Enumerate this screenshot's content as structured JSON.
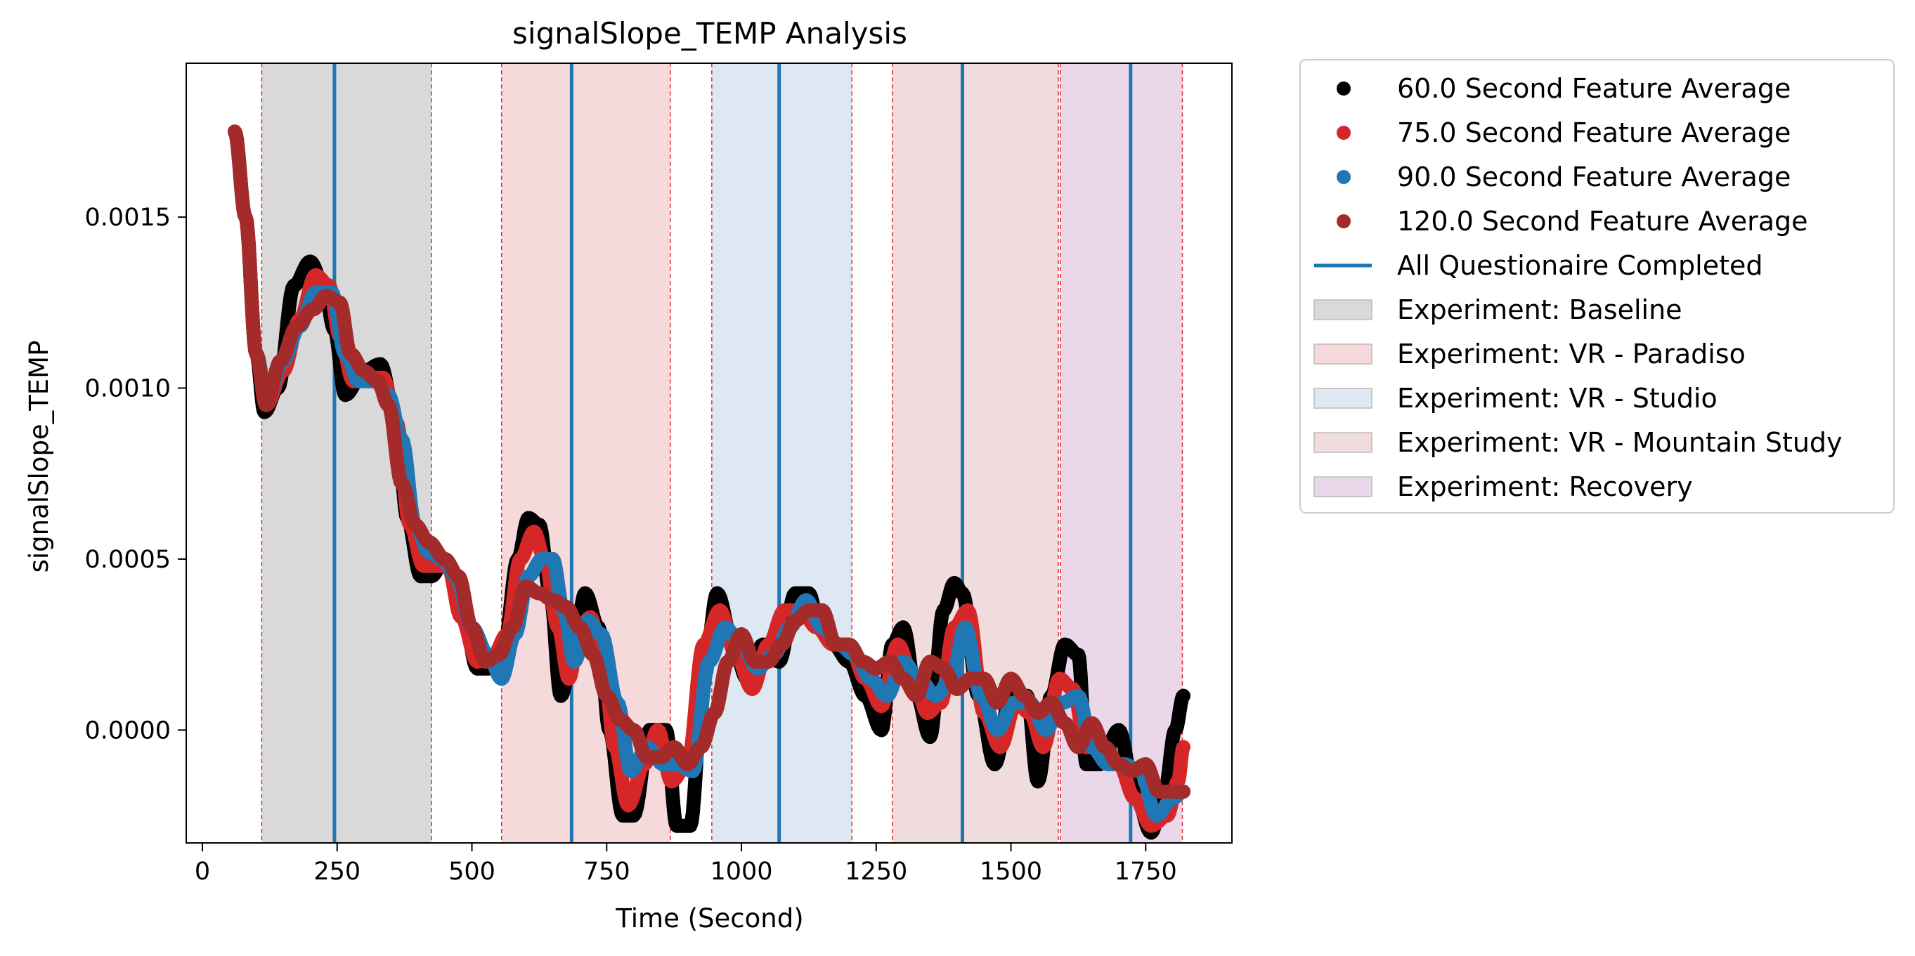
{
  "chart_data": {
    "type": "scatter",
    "title": "signalSlope_TEMP Analysis",
    "xlabel": "Time (Second)",
    "ylabel": "signalSlope_TEMP",
    "xlim": [
      -30,
      1910
    ],
    "ylim": [
      -0.00033,
      0.00195
    ],
    "xticks": [
      0,
      250,
      500,
      750,
      1000,
      1250,
      1500,
      1750
    ],
    "xtick_labels": [
      "0",
      "250",
      "500",
      "750",
      "1000",
      "1250",
      "1500",
      "1750"
    ],
    "yticks": [
      0.0,
      0.0005,
      0.001,
      0.0015
    ],
    "ytick_labels": [
      "0.0000",
      "0.0005",
      "0.0010",
      "0.0015"
    ],
    "grid": false,
    "legend_placement": "outside-right-top",
    "regions": [
      {
        "name": "Experiment: Baseline",
        "start": 110,
        "end": 425,
        "color": "#d9d9d9"
      },
      {
        "name": "Experiment: VR - Paradiso",
        "start": 555,
        "end": 868,
        "color": "#f6d9da"
      },
      {
        "name": "Experiment: VR - Studio",
        "start": 945,
        "end": 1205,
        "color": "#dde8f2"
      },
      {
        "name": "Experiment: VR - Mountain Study",
        "start": 1280,
        "end": 1588,
        "color": "#f0dcdc"
      },
      {
        "name": "Experiment: Recovery",
        "start": 1592,
        "end": 1818,
        "color": "#ead8ea"
      }
    ],
    "region_boundaries": [
      110,
      425,
      555,
      868,
      945,
      1205,
      1280,
      1588,
      1592,
      1818
    ],
    "vertical_lines": {
      "name": "All Questionaire Completed",
      "x": [
        245,
        685,
        1070,
        1410,
        1722
      ],
      "color": "#1f77b4"
    },
    "series": [
      {
        "name": "60.0 Second Feature Average",
        "color": "#000000",
        "x": [
          60,
          80,
          100,
          115,
          140,
          170,
          200,
          225,
          245,
          265,
          300,
          330,
          360,
          380,
          405,
          425,
          450,
          480,
          510,
          530,
          560,
          585,
          605,
          625,
          645,
          665,
          690,
          710,
          735,
          755,
          780,
          800,
          830,
          860,
          880,
          905,
          930,
          955,
          985,
          1010,
          1040,
          1070,
          1100,
          1125,
          1145,
          1170,
          1200,
          1230,
          1260,
          1280,
          1300,
          1325,
          1350,
          1375,
          1395,
          1410,
          1440,
          1470,
          1500,
          1530,
          1550,
          1575,
          1600,
          1625,
          1640,
          1665,
          1700,
          1730,
          1760,
          1785,
          1805,
          1820
        ],
        "y": [
          0.00175,
          0.0015,
          0.0011,
          0.00093,
          0.001,
          0.0013,
          0.00137,
          0.0013,
          0.00117,
          0.00098,
          0.00105,
          0.00107,
          0.0009,
          0.00062,
          0.00045,
          0.00045,
          0.0005,
          0.00038,
          0.00018,
          0.00018,
          0.00025,
          0.0005,
          0.00062,
          0.0006,
          0.0004,
          0.0001,
          0.00025,
          0.0004,
          0.0003,
          0.0,
          -0.00025,
          -0.00025,
          0.0,
          0.0,
          -0.00028,
          -0.00028,
          0.00015,
          0.0004,
          0.00025,
          0.00015,
          0.00025,
          0.0002,
          0.0004,
          0.0004,
          0.0003,
          0.00025,
          0.0002,
          0.0001,
          0.0,
          0.00025,
          0.0003,
          0.0001,
          -2e-05,
          0.00035,
          0.00043,
          0.0004,
          0.0001,
          -0.0001,
          0.0001,
          0.0001,
          -0.00015,
          0.0001,
          0.00025,
          0.00022,
          -0.0001,
          -0.0001,
          0.0,
          -0.00018,
          -0.0003,
          -0.00018,
          0.0,
          0.0001
        ]
      },
      {
        "name": "75.0 Second Feature Average",
        "color": "#d62728",
        "x": [
          60,
          80,
          100,
          118,
          150,
          180,
          210,
          235,
          255,
          280,
          310,
          335,
          360,
          385,
          410,
          430,
          455,
          480,
          510,
          540,
          565,
          590,
          615,
          635,
          660,
          680,
          700,
          720,
          745,
          765,
          790,
          820,
          845,
          870,
          900,
          930,
          960,
          990,
          1020,
          1050,
          1080,
          1110,
          1140,
          1170,
          1200,
          1230,
          1260,
          1290,
          1320,
          1345,
          1370,
          1395,
          1420,
          1450,
          1480,
          1510,
          1535,
          1560,
          1590,
          1615,
          1640,
          1665,
          1700,
          1730,
          1760,
          1790,
          1810,
          1820
        ],
        "y": [
          0.00175,
          0.0015,
          0.0011,
          0.00095,
          0.00105,
          0.0012,
          0.00133,
          0.0013,
          0.00115,
          0.00102,
          0.00103,
          0.00103,
          0.0009,
          0.0006,
          0.00048,
          0.00048,
          0.00048,
          0.00033,
          0.0002,
          0.00022,
          0.00028,
          0.0005,
          0.00058,
          0.0005,
          0.0003,
          0.00015,
          0.0003,
          0.00033,
          0.00018,
          -5e-05,
          -0.00022,
          -0.0001,
          0.0,
          -0.00015,
          -0.0001,
          0.00025,
          0.00035,
          0.00022,
          0.00012,
          0.00025,
          0.00035,
          0.00035,
          0.0003,
          0.00025,
          0.00025,
          0.00015,
          7e-05,
          0.00025,
          0.00015,
          5e-05,
          8e-05,
          0.0003,
          0.00035,
          5e-05,
          -5e-05,
          8e-05,
          5e-05,
          -5e-05,
          0.00015,
          0.00012,
          -5e-05,
          -5e-05,
          -0.0001,
          -0.0002,
          -0.00028,
          -0.00025,
          -0.00015,
          -5e-05
        ]
      },
      {
        "name": "90.0 Second Feature Average",
        "color": "#1f77b4",
        "x": [
          60,
          80,
          100,
          120,
          150,
          180,
          210,
          240,
          265,
          290,
          320,
          345,
          370,
          395,
          420,
          445,
          470,
          500,
          530,
          555,
          580,
          605,
          630,
          650,
          670,
          690,
          715,
          740,
          770,
          795,
          825,
          855,
          880,
          910,
          940,
          970,
          1000,
          1030,
          1060,
          1090,
          1120,
          1150,
          1180,
          1210,
          1240,
          1270,
          1300,
          1330,
          1360,
          1390,
          1415,
          1445,
          1475,
          1505,
          1535,
          1565,
          1595,
          1625,
          1650,
          1680,
          1710,
          1740,
          1770,
          1800,
          1820
        ],
        "y": [
          0.00175,
          0.0015,
          0.0011,
          0.00097,
          0.00108,
          0.00118,
          0.00128,
          0.00128,
          0.0011,
          0.00102,
          0.00102,
          0.00098,
          0.00085,
          0.0006,
          0.00052,
          0.0005,
          0.00045,
          0.0003,
          0.00022,
          0.00015,
          0.00028,
          0.00045,
          0.0005,
          0.0005,
          0.00035,
          0.0002,
          0.00032,
          0.00028,
          8e-05,
          -0.00012,
          -5e-05,
          -0.0001,
          -0.0001,
          -0.00012,
          0.0002,
          0.0003,
          0.00025,
          0.00018,
          0.00022,
          0.0003,
          0.00038,
          0.0003,
          0.00025,
          0.00022,
          0.00015,
          0.0001,
          0.0002,
          0.00015,
          0.0001,
          0.00015,
          0.0003,
          0.0001,
          0.0,
          8e-05,
          8e-05,
          0.0,
          8e-05,
          0.0001,
          -5e-05,
          -0.0001,
          -0.0001,
          -0.00012,
          -0.00025,
          -0.0002,
          -0.00018
        ]
      },
      {
        "name": "120.0 Second Feature Average",
        "color": "#a52a2a",
        "x": [
          60,
          80,
          100,
          118,
          145,
          175,
          205,
          230,
          255,
          275,
          300,
          325,
          345,
          370,
          395,
          420,
          450,
          475,
          500,
          525,
          550,
          575,
          600,
          625,
          650,
          675,
          700,
          725,
          750,
          775,
          800,
          825,
          850,
          875,
          900,
          925,
          950,
          975,
          1000,
          1025,
          1050,
          1075,
          1100,
          1125,
          1150,
          1175,
          1200,
          1225,
          1250,
          1275,
          1300,
          1325,
          1350,
          1375,
          1400,
          1425,
          1450,
          1475,
          1500,
          1525,
          1550,
          1575,
          1600,
          1625,
          1650,
          1675,
          1700,
          1725,
          1750,
          1775,
          1800,
          1820
        ],
        "y": [
          0.00175,
          0.0015,
          0.0011,
          0.00095,
          0.00108,
          0.00118,
          0.00123,
          0.00127,
          0.00125,
          0.0011,
          0.00105,
          0.00102,
          0.00095,
          0.00072,
          0.0006,
          0.00055,
          0.0005,
          0.00045,
          0.0003,
          0.0002,
          0.00022,
          0.0003,
          0.00042,
          0.0004,
          0.00038,
          0.00036,
          0.0003,
          0.00022,
          0.0001,
          3e-05,
          0.0,
          -8e-05,
          -8e-05,
          -5e-05,
          -0.0001,
          -5e-05,
          5e-05,
          0.0002,
          0.00028,
          0.0002,
          0.0002,
          0.00025,
          0.00032,
          0.00035,
          0.00035,
          0.00025,
          0.00025,
          0.0002,
          0.00018,
          0.0002,
          0.00015,
          0.0001,
          0.0002,
          0.00018,
          0.00012,
          0.00015,
          0.00015,
          8e-05,
          0.00015,
          0.0001,
          5e-05,
          8e-05,
          2e-05,
          -5e-05,
          2e-05,
          -5e-05,
          -0.0001,
          -0.00012,
          -0.0001,
          -0.00018,
          -0.00018,
          -0.00018
        ]
      }
    ]
  },
  "legend": {
    "items": [
      {
        "label": "60.0 Second Feature Average",
        "kind": "marker",
        "color": "#000000"
      },
      {
        "label": "75.0 Second Feature Average",
        "kind": "marker",
        "color": "#d62728"
      },
      {
        "label": "90.0 Second Feature Average",
        "kind": "marker",
        "color": "#1f77b4"
      },
      {
        "label": "120.0 Second Feature Average",
        "kind": "marker",
        "color": "#a52a2a"
      },
      {
        "label": "All Questionaire Completed",
        "kind": "line",
        "color": "#1f77b4"
      },
      {
        "label": "Experiment: Baseline",
        "kind": "patch",
        "color": "#d9d9d9"
      },
      {
        "label": "Experiment: VR - Paradiso",
        "kind": "patch",
        "color": "#f6d9da"
      },
      {
        "label": "Experiment: VR - Studio",
        "kind": "patch",
        "color": "#dde8f2"
      },
      {
        "label": "Experiment: VR - Mountain Study",
        "kind": "patch",
        "color": "#f0dcdc"
      },
      {
        "label": "Experiment: Recovery",
        "kind": "patch",
        "color": "#ead8ea"
      }
    ]
  }
}
